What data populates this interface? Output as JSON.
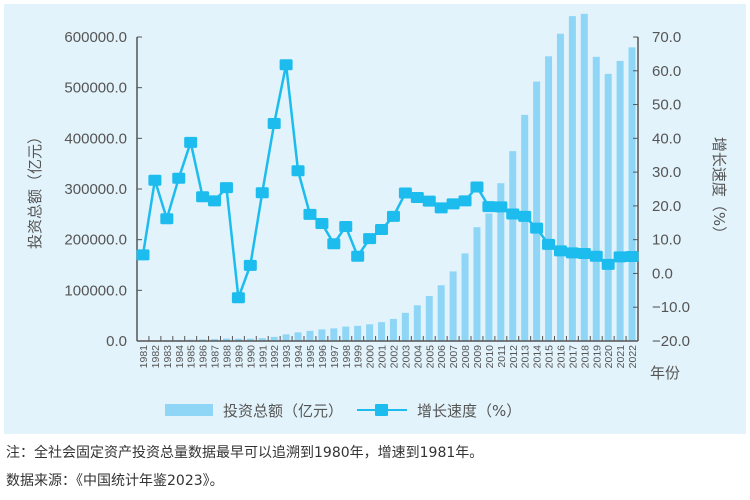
{
  "chart_data": {
    "type": "bar+line",
    "title": "",
    "categories": [
      "1981",
      "1982",
      "1983",
      "1984",
      "1985",
      "1986",
      "1987",
      "1988",
      "1989",
      "1990",
      "1991",
      "1992",
      "1993",
      "1994",
      "1995",
      "1996",
      "1997",
      "1998",
      "1999",
      "2000",
      "2001",
      "2002",
      "2003",
      "2004",
      "2005",
      "2006",
      "2007",
      "2008",
      "2009",
      "2010",
      "2011",
      "2012",
      "2013",
      "2014",
      "2015",
      "2016",
      "2017",
      "2018",
      "2019",
      "2020",
      "2021",
      "2022"
    ],
    "series": [
      {
        "name": "投资总额（亿元）",
        "type": "bar",
        "axis": "left",
        "color": "#8fd6f6",
        "values": [
          961,
          1230,
          1430,
          1833,
          2543,
          3121,
          3792,
          4754,
          4410,
          4517,
          5595,
          8080,
          13072,
          17042,
          20019,
          22914,
          24941,
          28406,
          29855,
          32918,
          37214,
          43500,
          55567,
          70477,
          88774,
          109998,
          137324,
          172828,
          224599,
          251684,
          311485,
          374695,
          446294,
          512021,
          561999,
          606466,
          641238,
          645675,
          560874,
          527270,
          552884,
          579556
        ]
      },
      {
        "name": "增长速度（%）",
        "type": "line",
        "axis": "right",
        "color": "#1cbcee",
        "marker": "square",
        "values": [
          5.5,
          27.6,
          16.2,
          28.2,
          38.8,
          22.7,
          21.5,
          25.4,
          -7.2,
          2.4,
          23.9,
          44.4,
          61.8,
          30.4,
          17.5,
          14.8,
          8.8,
          13.9,
          5.1,
          10.3,
          13.0,
          16.9,
          23.8,
          22.5,
          21.4,
          19.4,
          20.6,
          21.5,
          25.6,
          19.8,
          19.7,
          17.6,
          16.9,
          13.4,
          8.6,
          6.7,
          6.1,
          5.9,
          5.1,
          2.7,
          4.9,
          5.0
        ]
      }
    ],
    "xlabel": "年份",
    "ylabel_left": "投资总额（亿元）",
    "ylabel_right": "增长速度（%）",
    "ylim_left": [
      0,
      600000
    ],
    "ylim_right": [
      -20,
      70
    ],
    "yticks_left": [
      "0.0",
      "100000.0",
      "200000.0",
      "300000.0",
      "400000.0",
      "500000.0",
      "600000.0"
    ],
    "yticks_right": [
      "−20.0",
      "−10.0",
      "0.0",
      "10.0",
      "20.0",
      "30.0",
      "40.0",
      "50.0",
      "60.0",
      "70.0"
    ],
    "grid": false,
    "legend_position": "bottom"
  },
  "legend": {
    "bar_label": "投资总额（亿元）",
    "line_label": "增长速度（%）"
  },
  "notes": {
    "note": "注：全社会固定资产投资总量数据最早可以追溯到1980年，增速到1981年。",
    "source": "数据来源：《中国统计年鉴2023》。"
  }
}
